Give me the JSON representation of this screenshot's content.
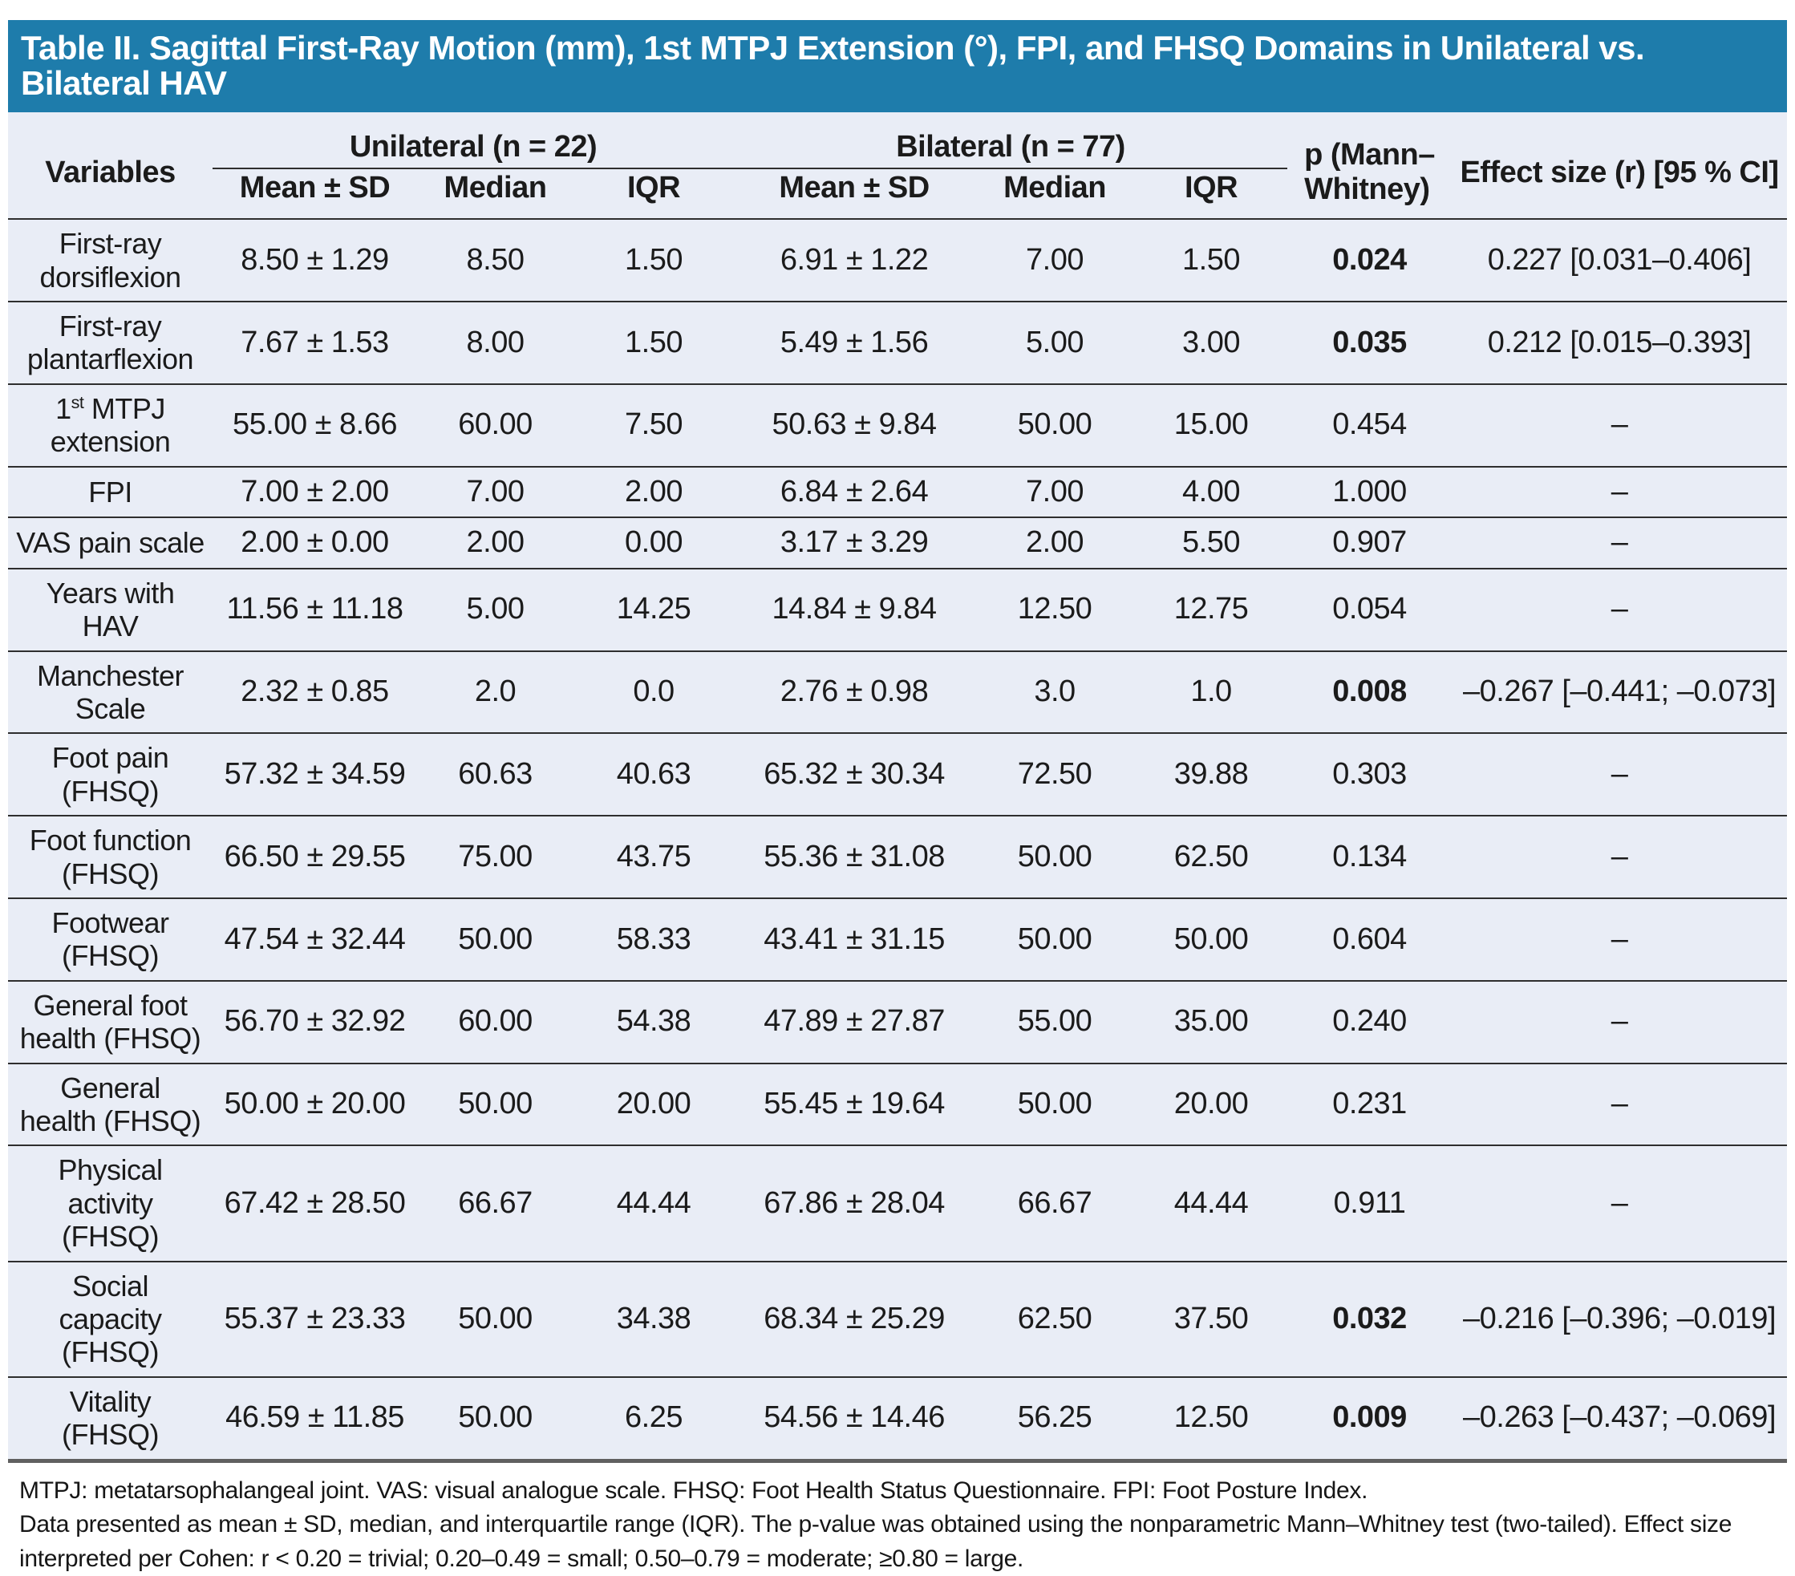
{
  "colors": {
    "title_bar_bg": "#1e7cab",
    "title_text": "#ffffff",
    "table_bg": "#e9edf6",
    "row_line": "#2e2e2e",
    "table_bottom_border": "#606060"
  },
  "title": "Table II. Sagittal First-Ray Motion (mm), 1st MTPJ Extension (°), FPI, and FHSQ Domains in Unilateral vs. Bilateral HAV",
  "table": {
    "variables_header": "Variables",
    "group_unilateral": "Unilateral (n = 22)",
    "group_bilateral": "Bilateral (n = 77)",
    "p_header_line1": "p (Mann–",
    "p_header_line2": "Whitney)",
    "effect_header": "Effect size (r) [95 % CI]",
    "sub_headers": [
      "Mean ± SD",
      "Median",
      "IQR",
      "Mean ± SD",
      "Median",
      "IQR"
    ],
    "rows": [
      {
        "label": "First-ray\ndorsiflexion",
        "uni": [
          "8.50 ± 1.29",
          "8.50",
          "1.50"
        ],
        "bil": [
          "6.91 ± 1.22",
          "7.00",
          "1.50"
        ],
        "p": "0.024",
        "p_bold": true,
        "effect": "0.227 [0.031–0.406]"
      },
      {
        "label": "First-ray\nplantarflexion",
        "uni": [
          "7.67 ± 1.53",
          "8.00",
          "1.50"
        ],
        "bil": [
          "5.49 ± 1.56",
          "5.00",
          "3.00"
        ],
        "p": "0.035",
        "p_bold": true,
        "effect": "0.212 [0.015–0.393]"
      },
      {
        "label_parts": [
          {
            "t": "1"
          },
          {
            "t": "st",
            "sup": true
          },
          {
            "t": " MTPJ\nextension"
          }
        ],
        "uni": [
          "55.00 ± 8.66",
          "60.00",
          "7.50"
        ],
        "bil": [
          "50.63 ± 9.84",
          "50.00",
          "15.00"
        ],
        "p": "0.454",
        "p_bold": false,
        "effect": "–"
      },
      {
        "label": "FPI",
        "uni": [
          "7.00 ± 2.00",
          "7.00",
          "2.00"
        ],
        "bil": [
          "6.84 ± 2.64",
          "7.00",
          "4.00"
        ],
        "p": "1.000",
        "p_bold": false,
        "effect": "–"
      },
      {
        "label": "VAS pain scale",
        "uni": [
          "2.00 ± 0.00",
          "2.00",
          "0.00"
        ],
        "bil": [
          "3.17 ± 3.29",
          "2.00",
          "5.50"
        ],
        "p": "0.907",
        "p_bold": false,
        "effect": "–"
      },
      {
        "label": "Years with\nHAV",
        "uni": [
          "11.56 ± 11.18",
          "5.00",
          "14.25"
        ],
        "bil": [
          "14.84 ± 9.84",
          "12.50",
          "12.75"
        ],
        "p": "0.054",
        "p_bold": false,
        "effect": "–"
      },
      {
        "label": "Manchester\nScale",
        "uni": [
          "2.32 ± 0.85",
          "2.0",
          "0.0"
        ],
        "bil": [
          "2.76 ± 0.98",
          "3.0",
          "1.0"
        ],
        "p": "0.008",
        "p_bold": true,
        "effect": "–0.267 [–0.441; –0.073]"
      },
      {
        "label": "Foot pain\n(FHSQ)",
        "uni": [
          "57.32 ± 34.59",
          "60.63",
          "40.63"
        ],
        "bil": [
          "65.32 ± 30.34",
          "72.50",
          "39.88"
        ],
        "p": "0.303",
        "p_bold": false,
        "effect": "–"
      },
      {
        "label": "Foot function\n(FHSQ)",
        "uni": [
          "66.50 ± 29.55",
          "75.00",
          "43.75"
        ],
        "bil": [
          "55.36 ± 31.08",
          "50.00",
          "62.50"
        ],
        "p": "0.134",
        "p_bold": false,
        "effect": "–"
      },
      {
        "label": "Footwear\n(FHSQ)",
        "uni": [
          "47.54 ± 32.44",
          "50.00",
          "58.33"
        ],
        "bil": [
          "43.41 ± 31.15",
          "50.00",
          "50.00"
        ],
        "p": "0.604",
        "p_bold": false,
        "effect": "–"
      },
      {
        "label": "General foot\nhealth (FHSQ)",
        "uni": [
          "56.70 ± 32.92",
          "60.00",
          "54.38"
        ],
        "bil": [
          "47.89 ± 27.87",
          "55.00",
          "35.00"
        ],
        "p": "0.240",
        "p_bold": false,
        "effect": "–"
      },
      {
        "label": "General\nhealth (FHSQ)",
        "uni": [
          "50.00 ± 20.00",
          "50.00",
          "20.00"
        ],
        "bil": [
          "55.45 ± 19.64",
          "50.00",
          "20.00"
        ],
        "p": "0.231",
        "p_bold": false,
        "effect": "–"
      },
      {
        "label": "Physical\nactivity\n(FHSQ)",
        "uni": [
          "67.42 ± 28.50",
          "66.67",
          "44.44"
        ],
        "bil": [
          "67.86 ± 28.04",
          "66.67",
          "44.44"
        ],
        "p": "0.911",
        "p_bold": false,
        "effect": "–"
      },
      {
        "label": "Social\ncapacity\n(FHSQ)",
        "uni": [
          "55.37 ± 23.33",
          "50.00",
          "34.38"
        ],
        "bil": [
          "68.34 ± 25.29",
          "62.50",
          "37.50"
        ],
        "p": "0.032",
        "p_bold": true,
        "effect": "–0.216 [–0.396; –0.019]"
      },
      {
        "label": "Vitality\n(FHSQ)",
        "uni": [
          "46.59 ± 11.85",
          "50.00",
          "6.25"
        ],
        "bil": [
          "54.56 ± 14.46",
          "56.25",
          "12.50"
        ],
        "p": "0.009",
        "p_bold": true,
        "effect": "–0.263 [–0.437; –0.069]"
      }
    ]
  },
  "footnotes": {
    "line1": "MTPJ: metatarsophalangeal joint. VAS: visual analogue scale. FHSQ: Foot Health Status Questionnaire. FPI: Foot Posture Index.",
    "line2": "Data presented as mean ± SD, median, and interquartile range (IQR). The p-value was obtained using the nonparametric Mann–Whitney test (two-tailed). Effect size interpreted per Cohen: r < 0.20 = trivial; 0.20–0.49 = small; 0.50–0.79 = moderate; ≥0.80 = large."
  }
}
